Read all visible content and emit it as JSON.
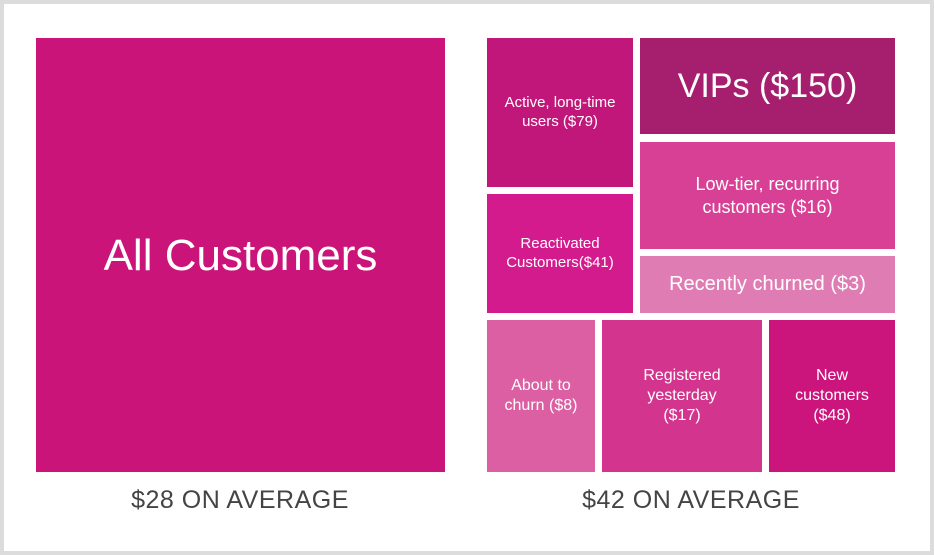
{
  "left": {
    "segment": {
      "label": "All Customers",
      "color": "#cb1479"
    },
    "caption": "$28 ON AVERAGE"
  },
  "right": {
    "segments": [
      {
        "label": "Active, long-time users ($79)",
        "color": "#c2177a"
      },
      {
        "label": "VIPs ($150)",
        "color": "#a61f6e"
      },
      {
        "label": "Low-tier, recurring customers ($16)",
        "color": "#d84096"
      },
      {
        "label": "Reactivated Customers($41)",
        "color": "#d41b8d"
      },
      {
        "label": "Recently churned ($3)",
        "color": "#e07cb4"
      },
      {
        "label": "About to churn ($8)",
        "color": "#dd5fa3"
      },
      {
        "label": "Registered yesterday ($17)",
        "color": "#d3358e"
      },
      {
        "label": "New customers ($48)",
        "color": "#cb157c"
      }
    ],
    "caption": "$42 ON AVERAGE"
  }
}
